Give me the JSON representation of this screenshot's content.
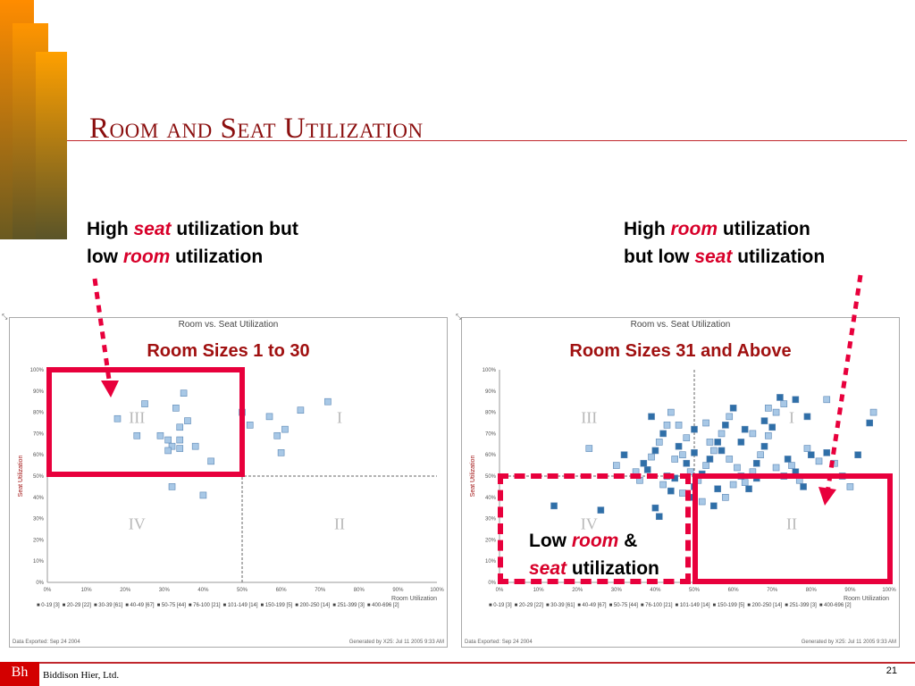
{
  "slide": {
    "title": "Room and Seat Utilization",
    "page_number": "21",
    "company": "Biddison Hier, Ltd.",
    "logo_text": "Bh",
    "colors": {
      "title": "#8b0f0f",
      "accent": "#e8003c",
      "subtitle": "#a01010",
      "light_point": "#a8c8e6",
      "dark_point": "#2f6fa8"
    }
  },
  "callouts": {
    "left": {
      "line1_pre": "High ",
      "line1_em": "seat",
      "line1_post": " utilization but",
      "line2_pre": "low ",
      "line2_em": "room",
      "line2_post": " utilization"
    },
    "right": {
      "line1_pre": "High ",
      "line1_em": "room",
      "line1_post": " utilization",
      "line2_pre": "but low ",
      "line2_em": "seat",
      "line2_post": " utilization"
    },
    "low": {
      "line1_pre": "Low ",
      "line1_em": "room",
      "line1_post": "  &",
      "line2_em": "seat",
      "line2_post": " utilization"
    }
  },
  "panels": {
    "left": {
      "header": "Room vs. Seat Utilization",
      "subtitle": "Room Sizes 1 to 30",
      "export_date": "Data Exported: Sep 24 2004",
      "generated": "Generated by X25: Jul 11 2005 9:33 AM",
      "legend": [
        "0-19 [3]",
        "20-29 [22]",
        "30-39 [61]",
        "40-49 [67]",
        "50-75 [44]",
        "76-100 [21]",
        "101-149 [14]",
        "150-199 [5]",
        "200-250 [14]",
        "251-399 [3]",
        "400-696 [2]"
      ]
    },
    "right": {
      "header": "Room vs. Seat Utilization",
      "subtitle": "Room Sizes 31 and Above",
      "export_date": "Data Exported: Sep 24 2004",
      "generated": "Generated by X25: Jul 11 2005 9:33 AM",
      "legend": [
        "0-19 [3]",
        "20-29 [22]",
        "30-39 [61]",
        "40-49 [67]",
        "50-75 [44]",
        "76-100 [21]",
        "101-149 [14]",
        "150-199 [5]",
        "200-250 [14]",
        "251-399 [3]",
        "400-696 [2]"
      ]
    }
  },
  "chart_data": [
    {
      "type": "scatter",
      "title": "Room vs. Seat Utilization",
      "subtitle": "Room Sizes 1 to 30",
      "xlabel": "Room Utilization",
      "ylabel": "Seat Utilization",
      "xlim": [
        0,
        100
      ],
      "ylim": [
        0,
        100
      ],
      "x_ticks": [
        "0%",
        "10%",
        "20%",
        "30%",
        "40%",
        "50%",
        "60%",
        "70%",
        "80%",
        "90%",
        "100%"
      ],
      "y_ticks": [
        "0%",
        "10%",
        "20%",
        "30%",
        "40%",
        "50%",
        "60%",
        "70%",
        "80%",
        "90%",
        "100%"
      ],
      "divider": {
        "x": 50,
        "y": 50
      },
      "quadrants": [
        "I",
        "II",
        "III",
        "IV"
      ],
      "points": [
        {
          "x": 25,
          "y": 84
        },
        {
          "x": 18,
          "y": 77
        },
        {
          "x": 35,
          "y": 89
        },
        {
          "x": 33,
          "y": 82
        },
        {
          "x": 36,
          "y": 76
        },
        {
          "x": 34,
          "y": 73
        },
        {
          "x": 23,
          "y": 69
        },
        {
          "x": 29,
          "y": 69
        },
        {
          "x": 31,
          "y": 67
        },
        {
          "x": 34,
          "y": 67
        },
        {
          "x": 32,
          "y": 64
        },
        {
          "x": 31,
          "y": 62
        },
        {
          "x": 34,
          "y": 63
        },
        {
          "x": 38,
          "y": 64
        },
        {
          "x": 42,
          "y": 57
        },
        {
          "x": 32,
          "y": 45
        },
        {
          "x": 40,
          "y": 41
        },
        {
          "x": 57,
          "y": 78
        },
        {
          "x": 52,
          "y": 74
        },
        {
          "x": 61,
          "y": 72
        },
        {
          "x": 59,
          "y": 69
        },
        {
          "x": 65,
          "y": 81
        },
        {
          "x": 72,
          "y": 85
        },
        {
          "x": 60,
          "y": 61
        },
        {
          "x": 50,
          "y": 80
        }
      ]
    },
    {
      "type": "scatter",
      "title": "Room vs. Seat Utilization",
      "subtitle": "Room Sizes 31 and Above",
      "xlabel": "Room Utilization",
      "ylabel": "Seat Utilization",
      "xlim": [
        0,
        100
      ],
      "ylim": [
        0,
        100
      ],
      "x_ticks": [
        "0%",
        "10%",
        "20%",
        "30%",
        "40%",
        "50%",
        "60%",
        "70%",
        "80%",
        "90%",
        "100%"
      ],
      "y_ticks": [
        "0%",
        "10%",
        "20%",
        "30%",
        "40%",
        "50%",
        "60%",
        "70%",
        "80%",
        "90%",
        "100%"
      ],
      "divider": {
        "x": 50,
        "y": 50
      },
      "quadrants": [
        "I",
        "II",
        "III",
        "IV"
      ],
      "points": [
        {
          "x": 14,
          "y": 36,
          "d": 1
        },
        {
          "x": 26,
          "y": 34,
          "d": 1
        },
        {
          "x": 23,
          "y": 63
        },
        {
          "x": 40,
          "y": 35,
          "d": 1
        },
        {
          "x": 41,
          "y": 31,
          "d": 1
        },
        {
          "x": 30,
          "y": 55
        },
        {
          "x": 32,
          "y": 60,
          "d": 1
        },
        {
          "x": 35,
          "y": 52
        },
        {
          "x": 37,
          "y": 56,
          "d": 1
        },
        {
          "x": 39,
          "y": 59
        },
        {
          "x": 40,
          "y": 62,
          "d": 1
        },
        {
          "x": 41,
          "y": 66
        },
        {
          "x": 42,
          "y": 70,
          "d": 1
        },
        {
          "x": 43,
          "y": 74
        },
        {
          "x": 39,
          "y": 78,
          "d": 1
        },
        {
          "x": 44,
          "y": 80
        },
        {
          "x": 46,
          "y": 64,
          "d": 1
        },
        {
          "x": 47,
          "y": 60
        },
        {
          "x": 48,
          "y": 56,
          "d": 1
        },
        {
          "x": 49,
          "y": 52
        },
        {
          "x": 45,
          "y": 49,
          "d": 1
        },
        {
          "x": 42,
          "y": 46
        },
        {
          "x": 44,
          "y": 43,
          "d": 1
        },
        {
          "x": 47,
          "y": 42
        },
        {
          "x": 50,
          "y": 45,
          "d": 1
        },
        {
          "x": 51,
          "y": 48
        },
        {
          "x": 52,
          "y": 51,
          "d": 1
        },
        {
          "x": 53,
          "y": 55
        },
        {
          "x": 54,
          "y": 58,
          "d": 1
        },
        {
          "x": 55,
          "y": 62
        },
        {
          "x": 56,
          "y": 66,
          "d": 1
        },
        {
          "x": 57,
          "y": 70
        },
        {
          "x": 58,
          "y": 74,
          "d": 1
        },
        {
          "x": 59,
          "y": 78
        },
        {
          "x": 60,
          "y": 82,
          "d": 1
        },
        {
          "x": 61,
          "y": 54
        },
        {
          "x": 62,
          "y": 50,
          "d": 1
        },
        {
          "x": 63,
          "y": 47
        },
        {
          "x": 64,
          "y": 44,
          "d": 1
        },
        {
          "x": 65,
          "y": 52
        },
        {
          "x": 66,
          "y": 56,
          "d": 1
        },
        {
          "x": 67,
          "y": 60
        },
        {
          "x": 68,
          "y": 64,
          "d": 1
        },
        {
          "x": 69,
          "y": 69
        },
        {
          "x": 70,
          "y": 73,
          "d": 1
        },
        {
          "x": 71,
          "y": 80
        },
        {
          "x": 72,
          "y": 87,
          "d": 1
        },
        {
          "x": 73,
          "y": 84
        },
        {
          "x": 74,
          "y": 58,
          "d": 1
        },
        {
          "x": 75,
          "y": 55
        },
        {
          "x": 76,
          "y": 52,
          "d": 1
        },
        {
          "x": 77,
          "y": 48
        },
        {
          "x": 78,
          "y": 45,
          "d": 1
        },
        {
          "x": 79,
          "y": 63
        },
        {
          "x": 80,
          "y": 60,
          "d": 1
        },
        {
          "x": 82,
          "y": 57
        },
        {
          "x": 84,
          "y": 61,
          "d": 1
        },
        {
          "x": 86,
          "y": 56
        },
        {
          "x": 88,
          "y": 50,
          "d": 1
        },
        {
          "x": 90,
          "y": 45
        },
        {
          "x": 92,
          "y": 60,
          "d": 1
        },
        {
          "x": 95,
          "y": 75,
          "d": 1
        },
        {
          "x": 96,
          "y": 80
        },
        {
          "x": 84,
          "y": 86
        },
        {
          "x": 79,
          "y": 78,
          "d": 1
        },
        {
          "x": 55,
          "y": 36,
          "d": 1
        },
        {
          "x": 52,
          "y": 38
        },
        {
          "x": 49,
          "y": 40,
          "d": 1
        },
        {
          "x": 58,
          "y": 40
        },
        {
          "x": 56,
          "y": 44,
          "d": 1
        },
        {
          "x": 60,
          "y": 46
        },
        {
          "x": 43,
          "y": 50,
          "d": 1
        },
        {
          "x": 36,
          "y": 48
        },
        {
          "x": 38,
          "y": 53,
          "d": 1
        },
        {
          "x": 48,
          "y": 68
        },
        {
          "x": 50,
          "y": 72,
          "d": 1
        },
        {
          "x": 53,
          "y": 75
        },
        {
          "x": 62,
          "y": 66,
          "d": 1
        },
        {
          "x": 65,
          "y": 70
        },
        {
          "x": 68,
          "y": 76,
          "d": 1
        },
        {
          "x": 46,
          "y": 74
        },
        {
          "x": 57,
          "y": 62,
          "d": 1
        },
        {
          "x": 59,
          "y": 58
        },
        {
          "x": 66,
          "y": 49,
          "d": 1
        },
        {
          "x": 71,
          "y": 54
        },
        {
          "x": 73,
          "y": 50,
          "d": 1
        },
        {
          "x": 45,
          "y": 58
        },
        {
          "x": 50,
          "y": 61,
          "d": 1
        },
        {
          "x": 54,
          "y": 66
        },
        {
          "x": 63,
          "y": 72,
          "d": 1
        },
        {
          "x": 69,
          "y": 82
        },
        {
          "x": 76,
          "y": 86,
          "d": 1
        }
      ]
    }
  ]
}
